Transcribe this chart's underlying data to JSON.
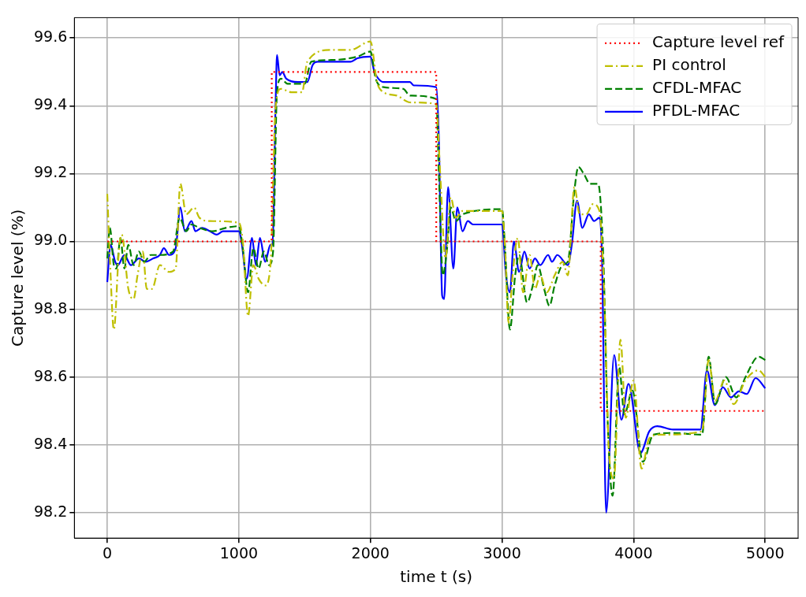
{
  "chart_data": {
    "type": "line",
    "xlabel": "time t (s)",
    "ylabel": "Capture level (%)",
    "xlim": [
      -250,
      5250
    ],
    "ylim": [
      98.125,
      99.66
    ],
    "xticks": [
      0,
      1000,
      2000,
      3000,
      4000,
      5000
    ],
    "yticks": [
      98.2,
      98.4,
      98.6,
      98.8,
      {
        "value": 99,
        "label": "99.0"
      },
      99.2,
      99.4,
      99.6
    ],
    "grid": true,
    "legend": "top right",
    "marker": "none",
    "series": [
      {
        "name": "Capture level ref",
        "type": "step",
        "color": "#ff0000",
        "line_style": "dotted",
        "x": [
          0,
          1250,
          2500,
          3750,
          5000
        ],
        "values": [
          99.0,
          99.5,
          99.0,
          98.5,
          98.5
        ]
      },
      {
        "name": "PI control",
        "color": "#bfbf00",
        "line_style": "dashdot",
        "x": [
          0,
          20,
          50,
          90,
          110,
          160,
          200,
          230,
          270,
          300,
          340,
          400,
          470,
          520,
          555,
          600,
          660,
          700,
          780,
          1000,
          1030,
          1070,
          1110,
          1150,
          1200,
          1240,
          1280,
          1320,
          1400,
          1480,
          1520,
          1700,
          1850,
          2000,
          2050,
          2100,
          2200,
          2300,
          2500,
          2530,
          2570,
          2610,
          2650,
          2700,
          3000,
          3020,
          3050,
          3080,
          3120,
          3160,
          3210,
          3250,
          3290,
          3340,
          3400,
          3460,
          3500,
          3550,
          3590,
          3640,
          3690,
          3740,
          3780,
          3810,
          3850,
          3900,
          3940,
          4000,
          4060,
          4120,
          4200,
          4520,
          4570,
          4620,
          4690,
          4760,
          4850,
          4950,
          5000
        ],
        "values": [
          99.14,
          98.95,
          98.74,
          98.98,
          99.02,
          98.86,
          98.83,
          98.9,
          98.97,
          98.86,
          98.86,
          98.93,
          98.91,
          98.92,
          99.17,
          99.08,
          99.1,
          99.07,
          99.06,
          99.055,
          99.0,
          98.78,
          98.93,
          98.89,
          98.87,
          98.93,
          99.4,
          99.45,
          99.44,
          99.44,
          99.53,
          99.565,
          99.565,
          99.59,
          99.47,
          99.44,
          99.43,
          99.41,
          99.405,
          99.2,
          98.95,
          99.13,
          99.07,
          99.09,
          99.09,
          99.0,
          98.76,
          98.9,
          99.01,
          98.85,
          98.96,
          98.86,
          98.9,
          98.85,
          98.9,
          98.94,
          98.9,
          99.16,
          99.08,
          99.08,
          99.11,
          99.09,
          98.8,
          98.4,
          98.3,
          98.71,
          98.48,
          98.59,
          98.33,
          98.42,
          98.43,
          98.44,
          98.65,
          98.53,
          98.59,
          98.52,
          98.59,
          98.62,
          98.6
        ]
      },
      {
        "name": "CFDL-MFAC",
        "color": "#008000",
        "line_style": "dashed",
        "x": [
          0,
          20,
          50,
          70,
          100,
          130,
          160,
          200,
          240,
          280,
          330,
          400,
          500,
          550,
          600,
          640,
          700,
          800,
          900,
          1000,
          1030,
          1070,
          1110,
          1150,
          1190,
          1230,
          1260,
          1290,
          1320,
          1370,
          1500,
          1550,
          1700,
          1900,
          2000,
          2040,
          2100,
          2250,
          2300,
          2500,
          2520,
          2550,
          2580,
          2610,
          2650,
          2700,
          3000,
          3020,
          3060,
          3100,
          3130,
          3190,
          3240,
          3270,
          3320,
          3360,
          3400,
          3460,
          3500,
          3550,
          3580,
          3620,
          3670,
          3730,
          3770,
          3800,
          3840,
          3890,
          3930,
          3990,
          4070,
          4150,
          4300,
          4520,
          4570,
          4620,
          4700,
          4780,
          4850,
          4950,
          5000
        ],
        "values": [
          98.95,
          99.04,
          98.93,
          98.92,
          99.01,
          98.92,
          98.99,
          98.93,
          98.97,
          98.94,
          98.96,
          98.96,
          98.97,
          99.07,
          99.03,
          99.05,
          99.04,
          99.03,
          99.04,
          99.045,
          98.98,
          98.85,
          98.98,
          98.92,
          98.97,
          98.93,
          98.97,
          99.44,
          99.48,
          99.465,
          99.465,
          99.53,
          99.535,
          99.545,
          99.56,
          99.48,
          99.455,
          99.45,
          99.43,
          99.42,
          99.2,
          98.9,
          98.97,
          99.1,
          99.06,
          99.08,
          99.095,
          99.0,
          98.74,
          98.9,
          98.96,
          98.82,
          98.88,
          98.93,
          98.86,
          98.81,
          98.87,
          98.93,
          98.94,
          99.15,
          99.22,
          99.2,
          99.17,
          99.17,
          98.95,
          98.5,
          98.25,
          98.63,
          98.49,
          98.56,
          98.35,
          98.43,
          98.435,
          98.43,
          98.66,
          98.52,
          98.6,
          98.54,
          98.6,
          98.66,
          98.65
        ]
      },
      {
        "name": "PFDL-MFAC",
        "color": "#0000ff",
        "line_style": "solid",
        "x": [
          0,
          25,
          60,
          80,
          130,
          180,
          240,
          290,
          350,
          400,
          430,
          470,
          520,
          555,
          590,
          640,
          670,
          720,
          780,
          830,
          880,
          1000,
          1020,
          1060,
          1100,
          1130,
          1160,
          1200,
          1240,
          1255,
          1280,
          1290,
          1310,
          1330,
          1360,
          1450,
          1520,
          1560,
          1600,
          1850,
          1900,
          2000,
          2030,
          2060,
          2100,
          2300,
          2330,
          2500,
          2520,
          2545,
          2560,
          2590,
          2630,
          2660,
          2700,
          2740,
          2780,
          3000,
          3030,
          3060,
          3090,
          3130,
          3170,
          3210,
          3250,
          3290,
          3350,
          3380,
          3420,
          3500,
          3530,
          3570,
          3610,
          3660,
          3700,
          3740,
          3760,
          3791,
          3852,
          3907,
          3961,
          4052,
          4119,
          4180,
          4300,
          4508,
          4557,
          4617,
          4678,
          4739,
          4800,
          4860,
          4927,
          5000
        ],
        "values": [
          98.88,
          98.99,
          98.94,
          98.93,
          98.96,
          98.93,
          98.95,
          98.94,
          98.95,
          98.96,
          98.98,
          98.96,
          98.98,
          99.1,
          99.03,
          99.06,
          99.03,
          99.04,
          99.03,
          99.02,
          99.03,
          99.03,
          99.0,
          98.89,
          99.01,
          98.93,
          99.01,
          98.94,
          98.99,
          98.99,
          99.42,
          99.55,
          99.49,
          99.5,
          99.48,
          99.47,
          99.47,
          99.52,
          99.53,
          99.53,
          99.54,
          99.545,
          99.5,
          99.48,
          99.47,
          99.47,
          99.46,
          99.455,
          99.3,
          98.84,
          98.83,
          99.16,
          98.92,
          99.1,
          99.03,
          99.06,
          99.05,
          99.05,
          98.9,
          98.85,
          99.0,
          98.91,
          98.97,
          98.92,
          98.95,
          98.93,
          98.96,
          98.94,
          98.96,
          98.93,
          98.99,
          99.12,
          99.04,
          99.08,
          99.06,
          99.07,
          98.95,
          98.2,
          98.665,
          98.474,
          98.58,
          98.376,
          98.44,
          98.455,
          98.445,
          98.445,
          98.62,
          98.517,
          98.57,
          98.54,
          98.558,
          98.55,
          98.597,
          98.567
        ]
      }
    ]
  }
}
